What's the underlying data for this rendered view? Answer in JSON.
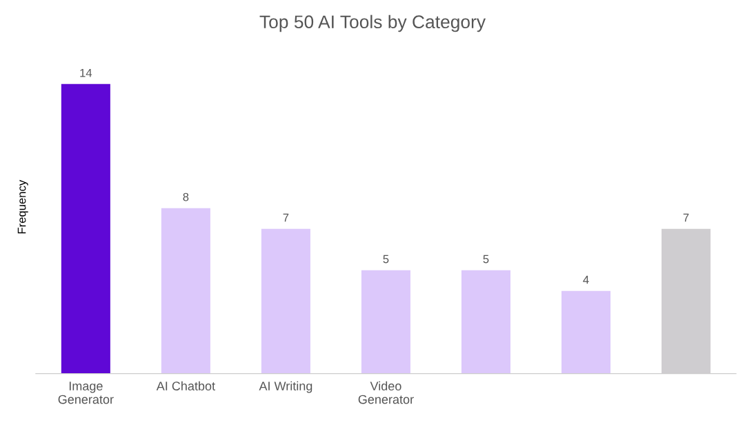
{
  "chart_data": {
    "type": "bar",
    "title": "Top 50 AI Tools by Category",
    "ylabel": "Frequency",
    "categories": [
      "Image\nGenerator",
      "AI Chatbot",
      "AI Writing",
      "Video\nGenerator",
      null,
      null,
      null
    ],
    "values": [
      14,
      8,
      7,
      5,
      5,
      4,
      7
    ],
    "colors": [
      "#5f08d6",
      "#dcc8fb",
      "#dcc8fb",
      "#dcc8fb",
      "#dcc8fb",
      "#dcc8fb",
      "#cfcdd0"
    ],
    "data_labels": true,
    "tick_labels": "x",
    "grid": false,
    "legend": false
  }
}
